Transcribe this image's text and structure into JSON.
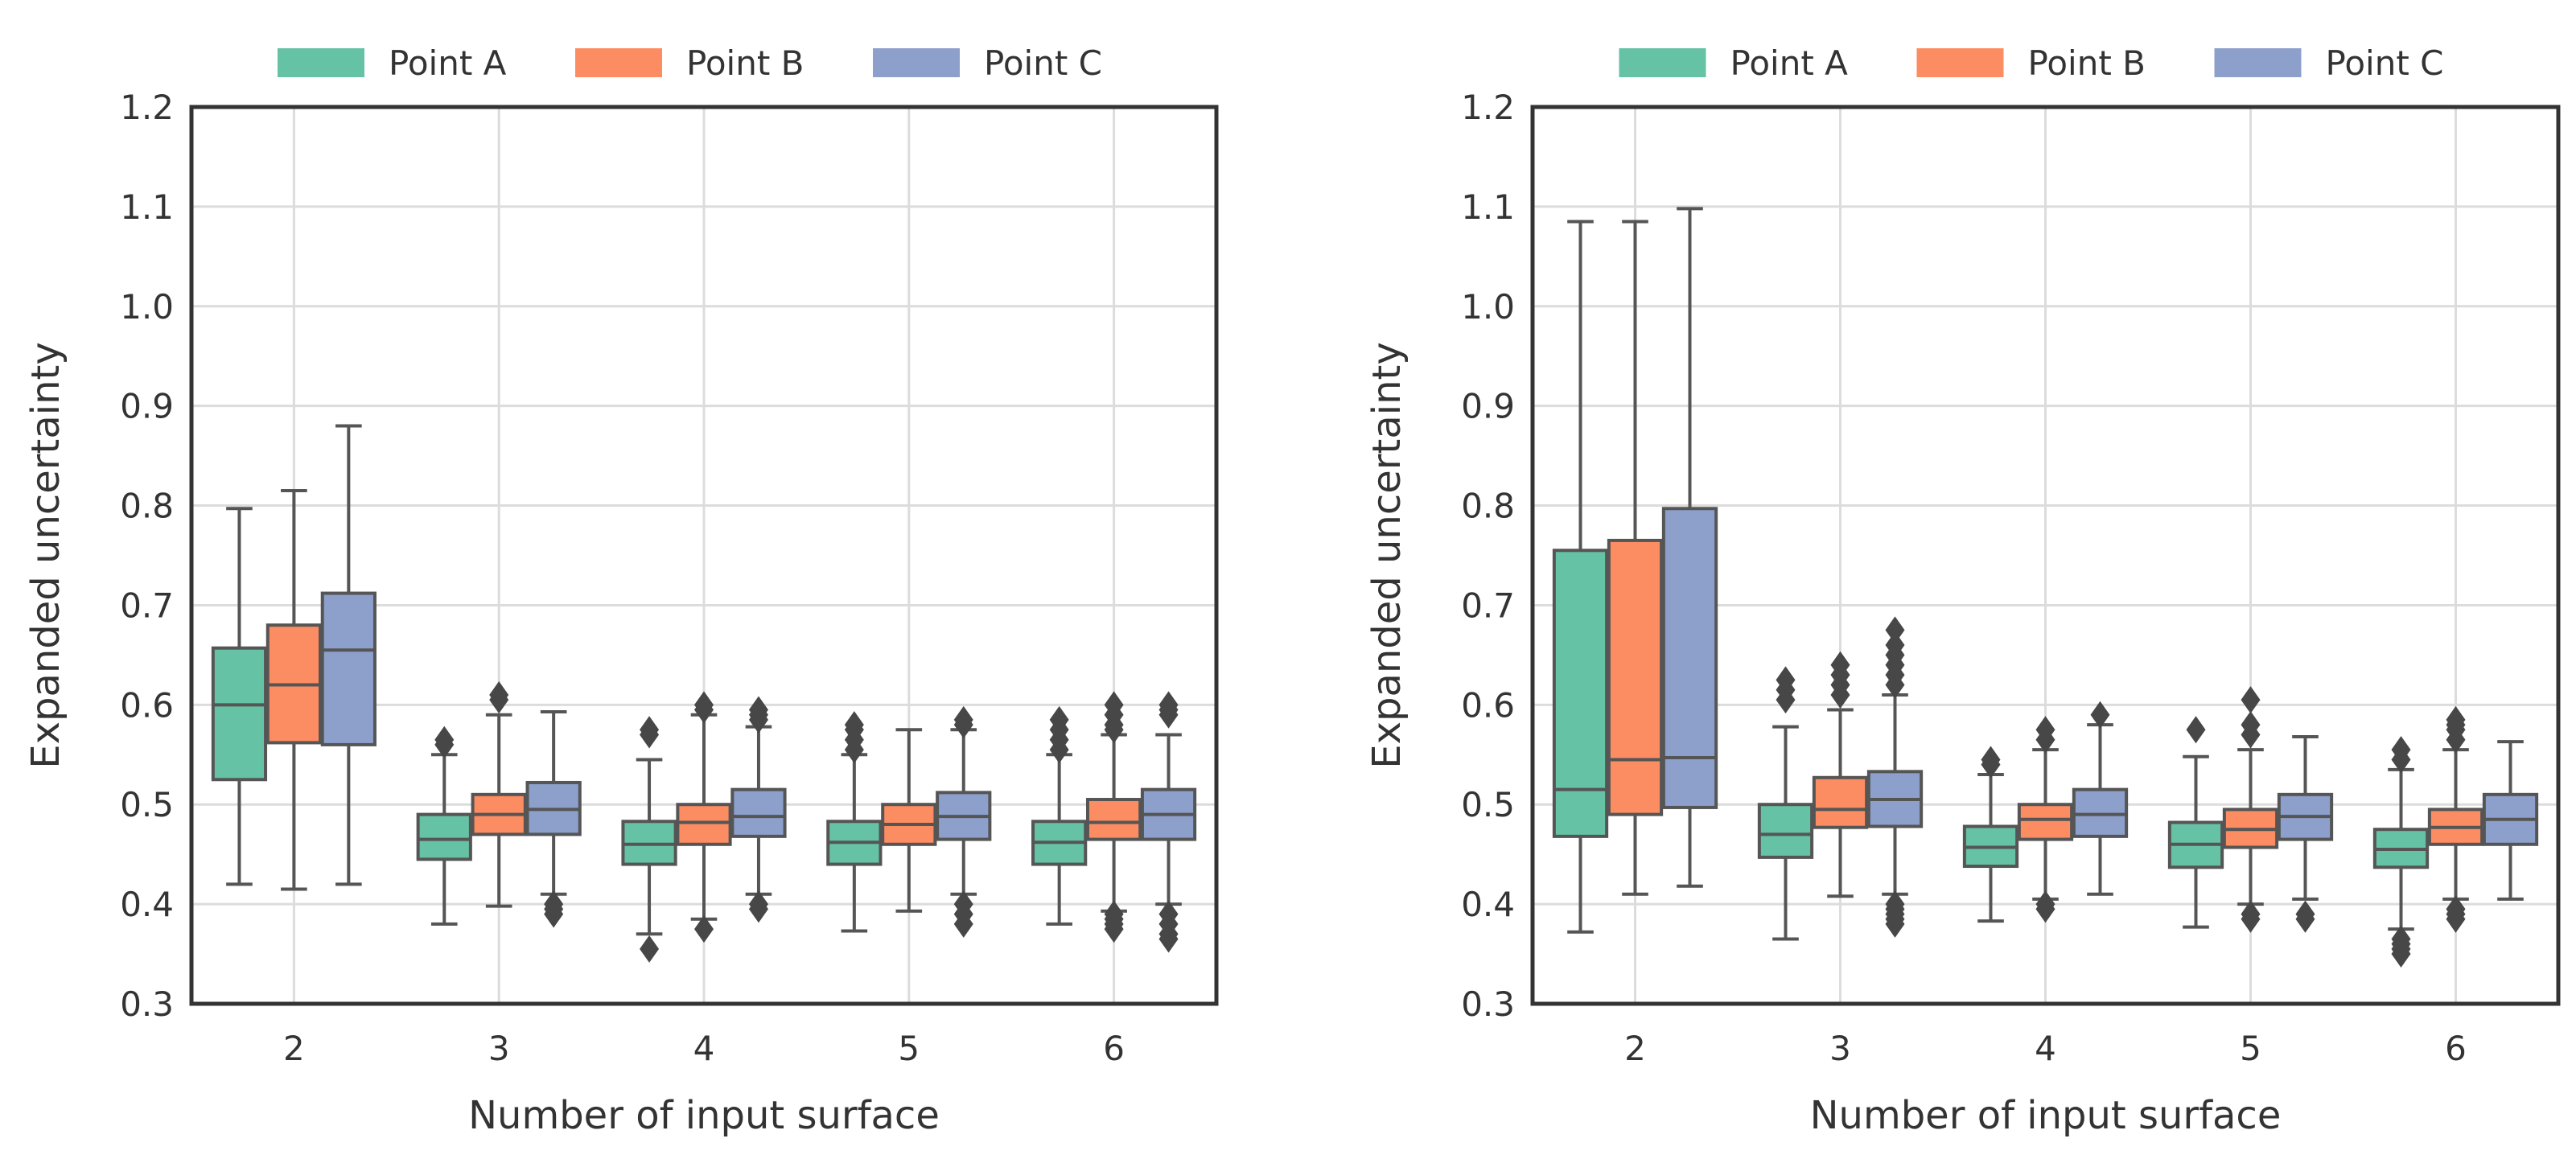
{
  "chart_data": [
    {
      "type": "boxplot",
      "title": "",
      "xlabel": "Number of input surface",
      "ylabel": "Expanded uncertainty",
      "ylim": [
        0.3,
        1.2
      ],
      "yticks": [
        "0.3",
        "0.4",
        "0.5",
        "0.6",
        "0.7",
        "0.8",
        "0.9",
        "1.0",
        "1.1",
        "1.2"
      ],
      "categories": [
        "2",
        "3",
        "4",
        "5",
        "6"
      ],
      "grid": true,
      "legend_position": "top-center",
      "series": [
        {
          "name": "Point A",
          "color": "#66c2a5",
          "boxes": [
            {
              "whislo": 0.42,
              "q1": 0.525,
              "med": 0.6,
              "q3": 0.657,
              "whishi": 0.797,
              "fliers": []
            },
            {
              "whislo": 0.38,
              "q1": 0.445,
              "med": 0.465,
              "q3": 0.49,
              "whishi": 0.55,
              "fliers": [
                0.56,
                0.565
              ]
            },
            {
              "whislo": 0.37,
              "q1": 0.44,
              "med": 0.46,
              "q3": 0.483,
              "whishi": 0.545,
              "fliers": [
                0.355,
                0.57,
                0.575
              ]
            },
            {
              "whislo": 0.373,
              "q1": 0.44,
              "med": 0.462,
              "q3": 0.483,
              "whishi": 0.55,
              "fliers": [
                0.555,
                0.565,
                0.575,
                0.58
              ]
            },
            {
              "whislo": 0.38,
              "q1": 0.44,
              "med": 0.462,
              "q3": 0.483,
              "whishi": 0.55,
              "fliers": [
                0.555,
                0.565,
                0.575,
                0.585
              ]
            }
          ]
        },
        {
          "name": "Point B",
          "color": "#fc8d62",
          "boxes": [
            {
              "whislo": 0.415,
              "q1": 0.562,
              "med": 0.62,
              "q3": 0.68,
              "whishi": 0.815,
              "fliers": []
            },
            {
              "whislo": 0.398,
              "q1": 0.47,
              "med": 0.49,
              "q3": 0.51,
              "whishi": 0.59,
              "fliers": [
                0.605,
                0.61
              ]
            },
            {
              "whislo": 0.385,
              "q1": 0.46,
              "med": 0.482,
              "q3": 0.5,
              "whishi": 0.59,
              "fliers": [
                0.375,
                0.595,
                0.6
              ]
            },
            {
              "whislo": 0.393,
              "q1": 0.46,
              "med": 0.48,
              "q3": 0.5,
              "whishi": 0.575,
              "fliers": []
            },
            {
              "whislo": 0.393,
              "q1": 0.465,
              "med": 0.482,
              "q3": 0.505,
              "whishi": 0.57,
              "fliers": [
                0.375,
                0.38,
                0.385,
                0.39,
                0.575,
                0.58,
                0.59,
                0.6
              ]
            }
          ]
        },
        {
          "name": "Point C",
          "color": "#8da0cb",
          "boxes": [
            {
              "whislo": 0.42,
              "q1": 0.56,
              "med": 0.655,
              "q3": 0.712,
              "whishi": 0.88,
              "fliers": []
            },
            {
              "whislo": 0.41,
              "q1": 0.47,
              "med": 0.495,
              "q3": 0.522,
              "whishi": 0.593,
              "fliers": [
                0.39,
                0.395,
                0.4
              ]
            },
            {
              "whislo": 0.41,
              "q1": 0.468,
              "med": 0.488,
              "q3": 0.515,
              "whishi": 0.578,
              "fliers": [
                0.395,
                0.4,
                0.585,
                0.59,
                0.595
              ]
            },
            {
              "whislo": 0.41,
              "q1": 0.465,
              "med": 0.488,
              "q3": 0.512,
              "whishi": 0.575,
              "fliers": [
                0.38,
                0.39,
                0.4,
                0.58,
                0.585
              ]
            },
            {
              "whislo": 0.4,
              "q1": 0.465,
              "med": 0.49,
              "q3": 0.515,
              "whishi": 0.57,
              "fliers": [
                0.365,
                0.37,
                0.38,
                0.39,
                0.59,
                0.595,
                0.6
              ]
            }
          ]
        }
      ]
    },
    {
      "type": "boxplot",
      "title": "",
      "xlabel": "Number of input surface",
      "ylabel": "Expanded uncertainty",
      "ylim": [
        0.3,
        1.2
      ],
      "yticks": [
        "0.3",
        "0.4",
        "0.5",
        "0.6",
        "0.7",
        "0.8",
        "0.9",
        "1.0",
        "1.1",
        "1.2"
      ],
      "categories": [
        "2",
        "3",
        "4",
        "5",
        "6"
      ],
      "grid": true,
      "legend_position": "top-center",
      "series": [
        {
          "name": "Point A",
          "color": "#66c2a5",
          "boxes": [
            {
              "whislo": 0.372,
              "q1": 0.468,
              "med": 0.515,
              "q3": 0.755,
              "whishi": 1.085,
              "fliers": []
            },
            {
              "whislo": 0.365,
              "q1": 0.447,
              "med": 0.47,
              "q3": 0.5,
              "whishi": 0.578,
              "fliers": [
                0.605,
                0.615,
                0.625
              ]
            },
            {
              "whislo": 0.383,
              "q1": 0.438,
              "med": 0.457,
              "q3": 0.478,
              "whishi": 0.53,
              "fliers": [
                0.54,
                0.545
              ]
            },
            {
              "whislo": 0.377,
              "q1": 0.437,
              "med": 0.46,
              "q3": 0.482,
              "whishi": 0.548,
              "fliers": [
                0.575
              ]
            },
            {
              "whislo": 0.375,
              "q1": 0.437,
              "med": 0.455,
              "q3": 0.475,
              "whishi": 0.535,
              "fliers": [
                0.35,
                0.355,
                0.36,
                0.365,
                0.545,
                0.555
              ]
            }
          ]
        },
        {
          "name": "Point B",
          "color": "#fc8d62",
          "boxes": [
            {
              "whislo": 0.41,
              "q1": 0.49,
              "med": 0.545,
              "q3": 0.765,
              "whishi": 1.085,
              "fliers": []
            },
            {
              "whislo": 0.408,
              "q1": 0.477,
              "med": 0.495,
              "q3": 0.527,
              "whishi": 0.595,
              "fliers": [
                0.61,
                0.62,
                0.63,
                0.64
              ]
            },
            {
              "whislo": 0.405,
              "q1": 0.465,
              "med": 0.485,
              "q3": 0.5,
              "whishi": 0.555,
              "fliers": [
                0.395,
                0.4,
                0.565,
                0.575
              ]
            },
            {
              "whislo": 0.4,
              "q1": 0.457,
              "med": 0.475,
              "q3": 0.495,
              "whishi": 0.555,
              "fliers": [
                0.385,
                0.39,
                0.57,
                0.58,
                0.605
              ]
            },
            {
              "whislo": 0.405,
              "q1": 0.46,
              "med": 0.477,
              "q3": 0.495,
              "whishi": 0.555,
              "fliers": [
                0.385,
                0.39,
                0.395,
                0.565,
                0.575,
                0.58,
                0.585
              ]
            }
          ]
        },
        {
          "name": "Point C",
          "color": "#8da0cb",
          "boxes": [
            {
              "whislo": 0.418,
              "q1": 0.497,
              "med": 0.547,
              "q3": 0.797,
              "whishi": 1.098,
              "fliers": []
            },
            {
              "whislo": 0.41,
              "q1": 0.478,
              "med": 0.505,
              "q3": 0.533,
              "whishi": 0.61,
              "fliers": [
                0.38,
                0.385,
                0.39,
                0.395,
                0.4,
                0.62,
                0.63,
                0.64,
                0.65,
                0.66,
                0.675
              ]
            },
            {
              "whislo": 0.41,
              "q1": 0.468,
              "med": 0.49,
              "q3": 0.515,
              "whishi": 0.58,
              "fliers": [
                0.59
              ]
            },
            {
              "whislo": 0.405,
              "q1": 0.465,
              "med": 0.488,
              "q3": 0.51,
              "whishi": 0.568,
              "fliers": [
                0.385,
                0.39
              ]
            },
            {
              "whislo": 0.405,
              "q1": 0.46,
              "med": 0.485,
              "q3": 0.51,
              "whishi": 0.563,
              "fliers": []
            }
          ]
        }
      ]
    }
  ]
}
